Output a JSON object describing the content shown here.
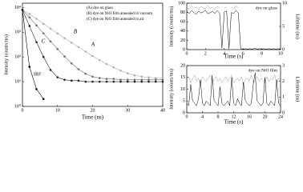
{
  "chart_data": [
    {
      "type": "scatter",
      "log_y": true,
      "xlabel": "Time (ns)",
      "ylabel": "Intensity (counts/ms)",
      "x": [
        0,
        2,
        4,
        6,
        8,
        10,
        12,
        14,
        16,
        18,
        20,
        22,
        24,
        26,
        28,
        30,
        32,
        34,
        36,
        38,
        40
      ],
      "xlim": [
        0,
        40
      ],
      "xticks": [
        0,
        10,
        20,
        30,
        40
      ],
      "ylim": [
        1,
        15000
      ],
      "yticks": [
        {
          "value": 1,
          "label": "10⁰"
        },
        {
          "value": 10,
          "label": "10¹"
        },
        {
          "value": 100,
          "label": "10²"
        },
        {
          "value": 1000,
          "label": "10³"
        },
        {
          "value": 10000,
          "label": "10⁴"
        }
      ],
      "series": [
        {
          "name": "(A) dye on glass",
          "color": "#b0b0b0",
          "values": [
            8000,
            5500,
            3500,
            2200,
            1400,
            900,
            580,
            380,
            250,
            165,
            110,
            75,
            52,
            38,
            28,
            22,
            18,
            16,
            15,
            14,
            14
          ]
        },
        {
          "name": "(B) dye on NiO film annealed in vacuum",
          "color": "#707070",
          "values": [
            8000,
            4000,
            1900,
            900,
            430,
            210,
            105,
            55,
            32,
            21,
            16,
            14,
            13,
            13,
            12,
            12,
            12,
            12,
            12,
            12,
            12
          ]
        },
        {
          "name": "(C) dye on NiO film annealed in air",
          "color": "#222222",
          "values": [
            8000,
            1800,
            400,
            100,
            30,
            15,
            12,
            11,
            11,
            10,
            10,
            10,
            10,
            10,
            10,
            10,
            10,
            10,
            10,
            10,
            10
          ]
        },
        {
          "name": "IRF",
          "color": "#000000",
          "values": [
            8000,
            40,
            5,
            2,
            null,
            null,
            null,
            null,
            null,
            null,
            null,
            null,
            null,
            null,
            null,
            null,
            null,
            null,
            null,
            null,
            null
          ]
        }
      ],
      "annotations": [
        "A",
        "B",
        "C"
      ]
    },
    {
      "type": "line",
      "title": "dye on glass",
      "xlabel": "Time (s)",
      "ylabel": "Intensity (counts/ms)",
      "y2label": "Lifetime (ns)",
      "x": [
        0,
        0.25,
        0.5,
        0.75,
        1,
        1.25,
        1.5,
        1.75,
        2,
        2.25,
        2.5,
        2.75,
        3,
        3.25,
        3.5,
        3.75,
        4,
        4.25,
        4.5,
        4.75,
        5,
        5.25,
        5.5,
        5.75,
        6,
        6.25,
        6.5,
        6.75,
        7,
        7.25,
        7.5,
        7.75,
        8,
        8.25,
        8.5,
        8.75,
        9,
        9.25,
        9.5,
        9.75,
        10
      ],
      "xlim": [
        0,
        10
      ],
      "xticks": [
        0,
        2,
        4,
        6,
        8,
        10
      ],
      "ylim": [
        0,
        100
      ],
      "yticks": [
        0,
        20,
        40,
        60,
        80,
        100
      ],
      "y2lim": [
        0,
        10
      ],
      "y2ticks": [
        0,
        5,
        10
      ],
      "series": [
        {
          "name": "Lifetime",
          "axis": "y2",
          "color": "#a0a0a0",
          "values": [
            9.1,
            8.7,
            9.4,
            8.9,
            9.2,
            8.6,
            9.3,
            9.0,
            8.8,
            9.5,
            8.9,
            9.1,
            8.7,
            9.3,
            9.0,
            null,
            8.8,
            9.2,
            null,
            9.1,
            8.9,
            9.4,
            9.0,
            null,
            null,
            null,
            null,
            null,
            null,
            null,
            null,
            null,
            null,
            null,
            null,
            null,
            null,
            null,
            null,
            null,
            null
          ]
        },
        {
          "name": "Intensity",
          "color": "#000000",
          "values": [
            82,
            78,
            84,
            80,
            76,
            83,
            79,
            81,
            85,
            77,
            80,
            82,
            78,
            84,
            79,
            3,
            81,
            83,
            2,
            80,
            78,
            84,
            79,
            2,
            1,
            2,
            1,
            2,
            1,
            3,
            1,
            2,
            1,
            2,
            1,
            2,
            1,
            2,
            1,
            2,
            1
          ]
        }
      ]
    },
    {
      "type": "line",
      "title": "dye on NiO film",
      "xlabel": "Time (s)",
      "ylabel": "Intensity (counts/ms)",
      "y2label": "Lifetime (ns)",
      "x": [
        0,
        0.5,
        1,
        1.5,
        2,
        2.5,
        3,
        3.5,
        4,
        4.5,
        5,
        5.5,
        6,
        6.5,
        7,
        7.5,
        8,
        8.5,
        9,
        9.5,
        10,
        10.5,
        11,
        11.5,
        12,
        12.5,
        13,
        13.5,
        14,
        14.5,
        15,
        15.5,
        16,
        16.5,
        17,
        17.5,
        18,
        18.5,
        19,
        19.5,
        20,
        20.5,
        21,
        21.5,
        22,
        22.5,
        23,
        23.5,
        24
      ],
      "xlim": [
        0,
        24
      ],
      "xticks": [
        0,
        4,
        8,
        12,
        16,
        20,
        24
      ],
      "ylim": [
        0,
        20
      ],
      "yticks": [
        0,
        5,
        10,
        15,
        20
      ],
      "y2lim": [
        0,
        3
      ],
      "y2ticks": [
        0,
        1,
        2,
        3
      ],
      "series": [
        {
          "name": "Lifetime",
          "axis": "y2",
          "color": "#a0a0a0",
          "values": [
            2.1,
            2.3,
            1.9,
            2.2,
            2.4,
            2.0,
            2.2,
            1.8,
            2.3,
            2.1,
            2.0,
            2.2,
            2.4,
            1.9,
            2.1,
            2.3,
            2.0,
            2.2,
            1.9,
            2.1,
            2.3,
            2.0,
            2.2,
            2.4,
            1.9,
            2.1,
            2.2,
            2.0,
            2.3,
            1.8,
            2.1,
            2.2,
            2.0,
            2.4,
            1.9,
            2.1,
            2.3,
            2.0,
            2.2,
            2.1,
            1.9,
            2.3,
            2.0,
            2.2,
            2.1,
            2.4,
            1.9,
            2.2,
            2.0
          ]
        },
        {
          "name": "Intensity",
          "color": "#000000",
          "values": [
            4,
            3,
            12,
            5,
            4,
            3,
            6,
            14,
            4,
            3,
            5,
            4,
            3,
            16,
            5,
            4,
            3,
            11,
            4,
            3,
            4,
            5,
            3,
            15,
            4,
            3,
            6,
            4,
            3,
            13,
            5,
            4,
            3,
            4,
            12,
            17,
            5,
            4,
            3,
            4,
            15,
            4,
            3,
            5,
            4,
            3,
            14,
            4,
            3
          ]
        }
      ]
    }
  ]
}
